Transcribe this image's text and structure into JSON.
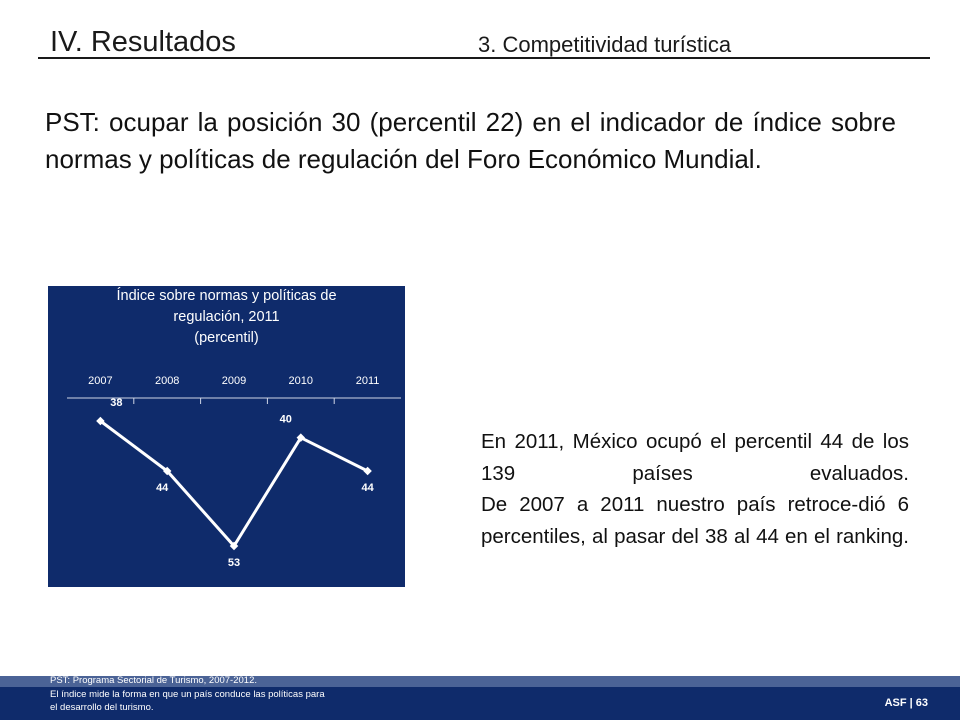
{
  "header": {
    "title": "IV. Resultados",
    "subtitle": "3. Competitividad turística"
  },
  "headline": "PST: ocupar la posición 30 (percentil 22) en el indicador de índice sobre normas y políticas de regulación del Foro Económico Mundial.",
  "chart_data": {
    "type": "line",
    "title_lines": [
      "Índice sobre normas y  políticas de",
      "regulación, 2011",
      "(percentil)"
    ],
    "categories": [
      "2007",
      "2008",
      "2009",
      "2010",
      "2011"
    ],
    "values": [
      38,
      44,
      53,
      40,
      44
    ],
    "data_labels": [
      "38",
      "44",
      "53",
      "40",
      "44"
    ],
    "y_axis": "inverted",
    "ylim": [
      53,
      38
    ],
    "grid": false,
    "legend": "none",
    "colors": {
      "background": "#0f2b6b",
      "line": "#ffffff",
      "text": "#ffffff"
    }
  },
  "body": {
    "paragraph1": "En 2011, México ocupó el percentil 44 de los 139 países evaluados.",
    "paragraph2": "De 2007 a 2011 nuestro país retroce-dió 6 percentiles, al pasar del 38 al 44 en el ranking."
  },
  "footer": {
    "note1": "PST:   Programa Sectorial de Turismo, 2007-2012.",
    "note2": "El índice mide la forma en que un país conduce las políticas para",
    "note3": "el desarrollo del turismo.",
    "page": "ASF | 63"
  }
}
